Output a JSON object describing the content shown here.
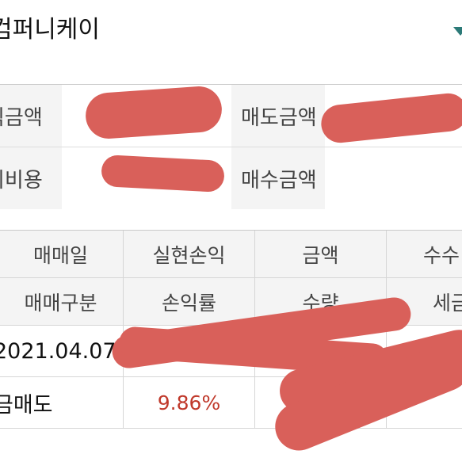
{
  "account": {
    "name": "컴퍼니케이"
  },
  "summary": {
    "profit_amount_label": "익금액",
    "cost_label": "비비용",
    "sell_amount_label": "매도금액",
    "buy_amount_label": "매수금액"
  },
  "trade_table": {
    "headers_row1": [
      "매매일",
      "실현손익",
      "금액",
      "수수"
    ],
    "headers_row2": [
      "매매구분",
      "손익률",
      "수량",
      "세금"
    ],
    "rows": [
      {
        "date": "2021.04.07",
        "type": "금매도",
        "profit_rate": "9.86%"
      }
    ]
  },
  "colors": {
    "accent": "#2c7a78",
    "loss_profit_rate": "#c0392b",
    "redaction": "#d9605a"
  }
}
